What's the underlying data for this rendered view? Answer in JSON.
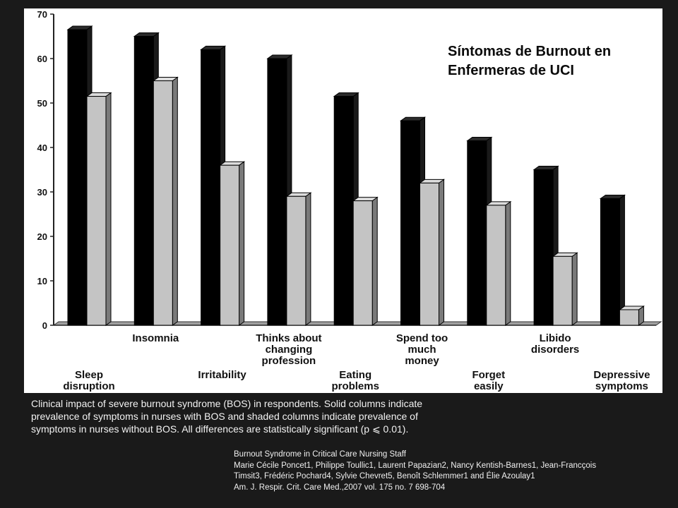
{
  "chart_data": {
    "type": "bar",
    "title_lines": [
      "Síntomas de Burnout en",
      "Enfermeras de UCI"
    ],
    "categories": [
      "Sleep disruption",
      "Insomnia",
      "Irritability",
      "Thinks about changing profession",
      "Eating problems",
      "Spend too much money",
      "Forget easily",
      "Libido disorders",
      "Depressive symptoms"
    ],
    "category_label_lines": [
      [
        "Sleep",
        "disruption"
      ],
      [
        "Insomnia"
      ],
      [
        "Irritability"
      ],
      [
        "Thinks about",
        "changing",
        "profession"
      ],
      [
        "Eating",
        "problems"
      ],
      [
        "Spend too",
        "much",
        "money"
      ],
      [
        "Forget",
        "easily"
      ],
      [
        "Libido",
        "disorders"
      ],
      [
        "Depressive",
        "symptoms"
      ]
    ],
    "series": [
      {
        "values": [
          66.5,
          65,
          62,
          60,
          51.5,
          46,
          41.5,
          35,
          28.5
        ],
        "color": "#000000"
      },
      {
        "values": [
          51.5,
          55,
          36,
          29,
          28,
          32,
          27,
          15.5,
          3.5
        ],
        "color": "#c4c4c4"
      }
    ],
    "ylim": [
      0,
      70
    ],
    "yticks": [
      0,
      10,
      20,
      30,
      40,
      50,
      60,
      70
    ],
    "grid": false,
    "legend": "none"
  },
  "caption": {
    "line1": "Clinical impact of severe burnout syndrome (BOS) in respondents. Solid columns indicate",
    "line2": "prevalence of symptoms in nurses with BOS and shaded columns indicate prevalence of",
    "line3": "symptoms in nurses without BOS. All differences are statistically significant (p ⩽ 0.01)."
  },
  "reference": {
    "title": "Burnout Syndrome in Critical Care Nursing Staff",
    "authors1": "Marie Cécile Poncet1, Philippe Toullic1, Laurent Papazian2, Nancy Kentish-Barnes1, Jean-Francçois",
    "authors2": "Timsit3, Frédéric Pochard4, Sylvie Chevret5, Benoît Schlemmer1 and Élie Azoulay1",
    "citation": "Am. J. Respir. Crit. Care Med.,2007  vol. 175  no. 7  698-704"
  }
}
